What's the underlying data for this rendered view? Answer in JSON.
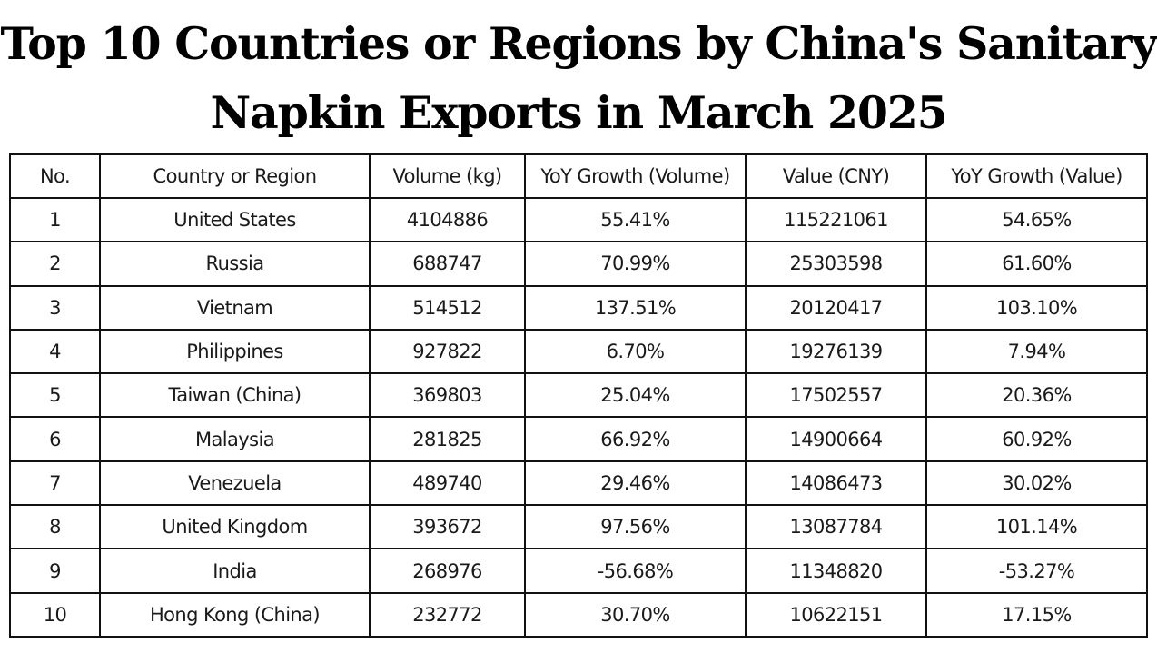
{
  "title_line1": "Top 10 Countries or Regions by China's Sanitary",
  "title_line2": "Napkin Exports in March 2025",
  "chart_data": {
    "type": "table",
    "columns": [
      "No.",
      "Country or Region",
      "Volume (kg)",
      "YoY Growth (Volume)",
      "Value (CNY)",
      "YoY Growth (Value)"
    ],
    "rows": [
      [
        "1",
        "United States",
        "4104886",
        "55.41%",
        "115221061",
        "54.65%"
      ],
      [
        "2",
        "Russia",
        "688747",
        "70.99%",
        "25303598",
        "61.60%"
      ],
      [
        "3",
        "Vietnam",
        "514512",
        "137.51%",
        "20120417",
        "103.10%"
      ],
      [
        "4",
        "Philippines",
        "927822",
        "6.70%",
        "19276139",
        "7.94%"
      ],
      [
        "5",
        "Taiwan (China)",
        "369803",
        "25.04%",
        "17502557",
        "20.36%"
      ],
      [
        "6",
        "Malaysia",
        "281825",
        "66.92%",
        "14900664",
        "60.92%"
      ],
      [
        "7",
        "Venezuela",
        "489740",
        "29.46%",
        "14086473",
        "30.02%"
      ],
      [
        "8",
        "United Kingdom",
        "393672",
        "97.56%",
        "13087784",
        "101.14%"
      ],
      [
        "9",
        "India",
        "268976",
        "-56.68%",
        "11348820",
        "-53.27%"
      ],
      [
        "10",
        "Hong Kong (China)",
        "232772",
        "30.70%",
        "10622151",
        "17.15%"
      ]
    ]
  }
}
